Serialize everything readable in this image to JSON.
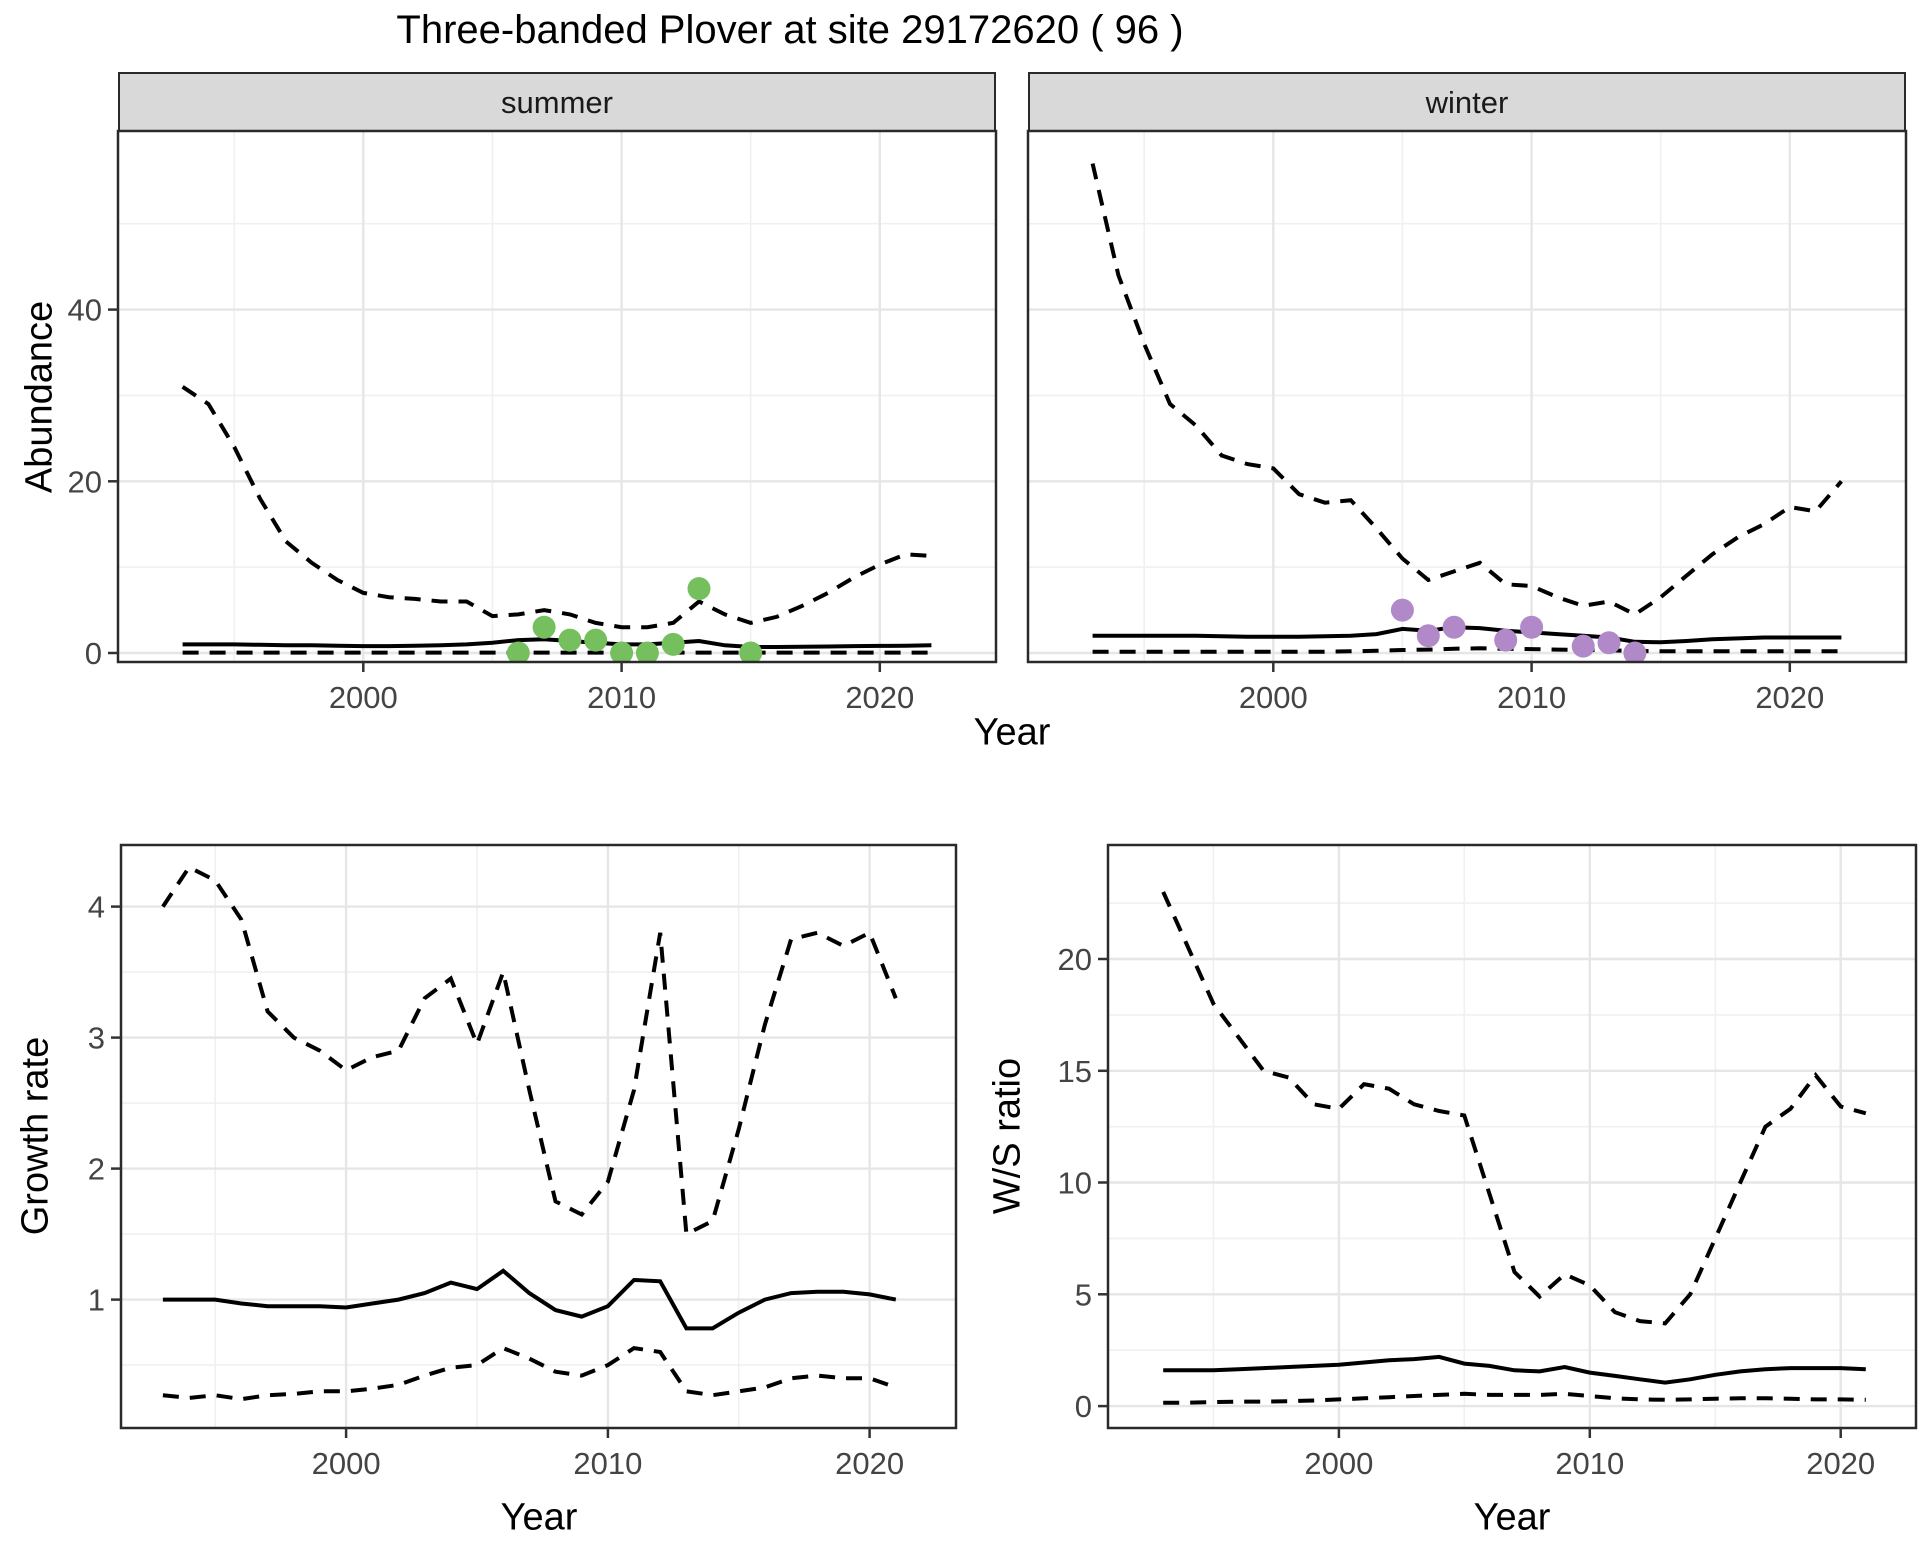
{
  "title": "Three-banded Plover at site 29172620 ( 96 )",
  "colors": {
    "line": "#000000",
    "grid_major": "#e6e6e6",
    "grid_minor": "#f0f0f0",
    "panel_border": "#2a2a2a",
    "strip_bg": "#d9d9d9",
    "tick_text": "#444444",
    "summer_point": "#76bf5e",
    "winter_point": "#b189c8"
  },
  "chart_data": [
    {
      "id": "abundance-summer",
      "type": "line",
      "facet": "summer",
      "xlabel": "Year",
      "ylabel": "Abundance",
      "xlim": [
        1990.5,
        2024.5
      ],
      "ylim": [
        -1.05,
        60.8
      ],
      "x_major": [
        2000,
        2010,
        2020
      ],
      "x_minor": [
        1995,
        2005,
        2015
      ],
      "y_major": [
        0,
        20,
        40
      ],
      "y_minor": [
        10,
        30,
        50
      ],
      "years": [
        1993,
        1994,
        1995,
        1996,
        1997,
        1998,
        1999,
        2000,
        2001,
        2002,
        2003,
        2004,
        2005,
        2006,
        2007,
        2008,
        2009,
        2010,
        2011,
        2012,
        2013,
        2014,
        2015,
        2016,
        2017,
        2018,
        2019,
        2020,
        2021,
        2022
      ],
      "series": [
        {
          "name": "upper-95ci",
          "style": "dashed",
          "values": [
            31,
            29,
            24,
            18,
            13,
            10.5,
            8.5,
            7,
            6.5,
            6.3,
            6,
            6,
            4.3,
            4.5,
            5,
            4.5,
            3.5,
            3,
            3,
            3.5,
            6,
            4.5,
            3.5,
            4.2,
            5.5,
            7,
            8.8,
            10.3,
            11.5,
            11.3
          ]
        },
        {
          "name": "median",
          "style": "solid",
          "values": [
            1,
            1,
            1,
            0.95,
            0.9,
            0.9,
            0.85,
            0.8,
            0.8,
            0.85,
            0.9,
            1,
            1.2,
            1.5,
            1.6,
            1.4,
            1.2,
            1,
            1,
            1.2,
            1.4,
            0.9,
            0.7,
            0.7,
            0.72,
            0.75,
            0.8,
            0.82,
            0.85,
            0.9
          ]
        },
        {
          "name": "lower-95ci",
          "style": "dashed",
          "values": [
            0.05,
            0.05,
            0.05,
            0.05,
            0.05,
            0.05,
            0.05,
            0.05,
            0.05,
            0.05,
            0.05,
            0.05,
            0.05,
            0.05,
            0.05,
            0.05,
            0.05,
            0.05,
            0.05,
            0.05,
            0.05,
            0.05,
            0.05,
            0.05,
            0.05,
            0.05,
            0.05,
            0.05,
            0.05,
            0.05
          ]
        }
      ],
      "points": {
        "name": "observed-count-summer",
        "color_key": "summer_point",
        "years": [
          2006,
          2007,
          2008,
          2009,
          2010,
          2011,
          2012,
          2013,
          2015
        ],
        "values": [
          0,
          3,
          1.5,
          1.5,
          0,
          0,
          1,
          7.5,
          0
        ]
      }
    },
    {
      "id": "abundance-winter",
      "type": "line",
      "facet": "winter",
      "xlabel": "Year",
      "ylabel": "Abundance",
      "xlim": [
        1990.5,
        2024.5
      ],
      "ylim": [
        -1.05,
        60.8
      ],
      "x_major": [
        2000,
        2010,
        2020
      ],
      "x_minor": [
        1995,
        2005,
        2015
      ],
      "y_major": [
        0,
        20,
        40
      ],
      "y_minor": [
        10,
        30,
        50
      ],
      "years": [
        1993,
        1994,
        1995,
        1996,
        1997,
        1998,
        1999,
        2000,
        2001,
        2002,
        2003,
        2004,
        2005,
        2006,
        2007,
        2008,
        2009,
        2010,
        2011,
        2012,
        2013,
        2014,
        2015,
        2016,
        2017,
        2018,
        2019,
        2020,
        2021,
        2022
      ],
      "series": [
        {
          "name": "upper-95ci",
          "style": "dashed",
          "values": [
            57,
            44,
            36,
            29,
            26.5,
            23,
            22,
            21.5,
            18.5,
            17.5,
            17.8,
            14.5,
            11,
            8.5,
            9.5,
            10.5,
            8,
            7.8,
            6.5,
            5.5,
            6,
            4.5,
            6.5,
            9,
            11.5,
            13.5,
            15,
            17,
            16.5,
            20
          ]
        },
        {
          "name": "median",
          "style": "solid",
          "values": [
            2,
            2,
            2,
            2,
            2,
            1.95,
            1.9,
            1.9,
            1.9,
            1.95,
            2,
            2.2,
            2.8,
            2.6,
            3,
            2.9,
            2.6,
            2.4,
            2.2,
            2,
            1.8,
            1.3,
            1.25,
            1.4,
            1.6,
            1.7,
            1.8,
            1.8,
            1.8,
            1.8
          ]
        },
        {
          "name": "lower-95ci",
          "style": "dashed",
          "values": [
            0.15,
            0.15,
            0.15,
            0.15,
            0.15,
            0.15,
            0.15,
            0.15,
            0.15,
            0.15,
            0.2,
            0.25,
            0.35,
            0.4,
            0.5,
            0.55,
            0.5,
            0.45,
            0.4,
            0.35,
            0.3,
            0.25,
            0.2,
            0.2,
            0.2,
            0.2,
            0.2,
            0.2,
            0.2,
            0.2
          ]
        }
      ],
      "points": {
        "name": "observed-count-winter",
        "color_key": "winter_point",
        "years": [
          2005,
          2006,
          2007,
          2009,
          2010,
          2012,
          2013,
          2014
        ],
        "values": [
          5,
          2,
          3,
          1.5,
          3,
          0.8,
          1.2,
          0
        ]
      }
    },
    {
      "id": "growth-rate",
      "type": "line",
      "facet": null,
      "xlabel": "Year",
      "ylabel": "Growth rate",
      "xlim": [
        1991.4,
        2023.3
      ],
      "ylim": [
        0.02,
        4.47
      ],
      "x_major": [
        2000,
        2010,
        2020
      ],
      "x_minor": [
        1995,
        2005,
        2015
      ],
      "y_major": [
        1,
        2,
        3,
        4
      ],
      "y_minor": [
        0.5,
        1.5,
        2.5,
        3.5
      ],
      "years": [
        1993,
        1994,
        1995,
        1996,
        1997,
        1998,
        1999,
        2000,
        2001,
        2002,
        2003,
        2004,
        2005,
        2006,
        2007,
        2008,
        2009,
        2010,
        2011,
        2012,
        2013,
        2014,
        2015,
        2016,
        2017,
        2018,
        2019,
        2020,
        2021
      ],
      "series": [
        {
          "name": "upper-95ci",
          "style": "dashed",
          "values": [
            4,
            4.3,
            4.2,
            3.9,
            3.2,
            3,
            2.9,
            2.75,
            2.85,
            2.9,
            3.3,
            3.45,
            2.95,
            3.5,
            2.6,
            1.75,
            1.65,
            1.9,
            2.6,
            3.8,
            1.5,
            1.6,
            2.3,
            3.1,
            3.75,
            3.8,
            3.7,
            3.8,
            3.3
          ]
        },
        {
          "name": "median",
          "style": "solid",
          "values": [
            1,
            1,
            1,
            0.97,
            0.95,
            0.95,
            0.95,
            0.94,
            0.97,
            1,
            1.05,
            1.13,
            1.08,
            1.22,
            1.05,
            0.92,
            0.87,
            0.95,
            1.15,
            1.14,
            0.78,
            0.78,
            0.9,
            1,
            1.05,
            1.06,
            1.06,
            1.04,
            1
          ]
        },
        {
          "name": "lower-95ci",
          "style": "dashed",
          "values": [
            0.27,
            0.25,
            0.27,
            0.24,
            0.27,
            0.28,
            0.3,
            0.3,
            0.32,
            0.35,
            0.42,
            0.48,
            0.5,
            0.63,
            0.55,
            0.45,
            0.42,
            0.5,
            0.63,
            0.6,
            0.3,
            0.27,
            0.3,
            0.33,
            0.4,
            0.42,
            0.4,
            0.4,
            0.33
          ]
        }
      ]
    },
    {
      "id": "ws-ratio",
      "type": "line",
      "facet": null,
      "xlabel": "Year",
      "ylabel": "W/S ratio",
      "xlim": [
        1990.8,
        2023.0
      ],
      "ylim": [
        -0.98,
        25.1
      ],
      "x_major": [
        2000,
        2010,
        2020
      ],
      "x_minor": [
        1995,
        2005,
        2015
      ],
      "y_major": [
        0,
        5,
        10,
        15,
        20
      ],
      "y_minor": [
        2.5,
        7.5,
        12.5,
        17.5,
        22.5
      ],
      "years": [
        1993,
        1994,
        1995,
        1996,
        1997,
        1998,
        1999,
        2000,
        2001,
        2002,
        2003,
        2004,
        2005,
        2006,
        2007,
        2008,
        2009,
        2010,
        2011,
        2012,
        2013,
        2014,
        2015,
        2016,
        2017,
        2018,
        2019,
        2020,
        2021
      ],
      "series": [
        {
          "name": "upper-95ci",
          "style": "dashed",
          "values": [
            23,
            20.5,
            18,
            16.5,
            15,
            14.7,
            13.5,
            13.3,
            14.4,
            14.2,
            13.5,
            13.2,
            13,
            9.5,
            6,
            4.9,
            5.9,
            5.4,
            4.2,
            3.8,
            3.7,
            5,
            7.5,
            10,
            12.5,
            13.3,
            14.8,
            13.4,
            13.1
          ]
        },
        {
          "name": "median",
          "style": "solid",
          "values": [
            1.6,
            1.6,
            1.6,
            1.65,
            1.7,
            1.75,
            1.8,
            1.85,
            1.95,
            2.05,
            2.1,
            2.2,
            1.9,
            1.8,
            1.6,
            1.55,
            1.75,
            1.5,
            1.35,
            1.2,
            1.05,
            1.2,
            1.4,
            1.55,
            1.65,
            1.7,
            1.7,
            1.7,
            1.65
          ]
        },
        {
          "name": "lower-95ci",
          "style": "dashed",
          "values": [
            0.15,
            0.15,
            0.18,
            0.2,
            0.2,
            0.22,
            0.25,
            0.3,
            0.35,
            0.4,
            0.45,
            0.5,
            0.55,
            0.5,
            0.5,
            0.5,
            0.55,
            0.45,
            0.35,
            0.3,
            0.28,
            0.3,
            0.33,
            0.35,
            0.35,
            0.33,
            0.3,
            0.3,
            0.28
          ]
        }
      ]
    }
  ]
}
